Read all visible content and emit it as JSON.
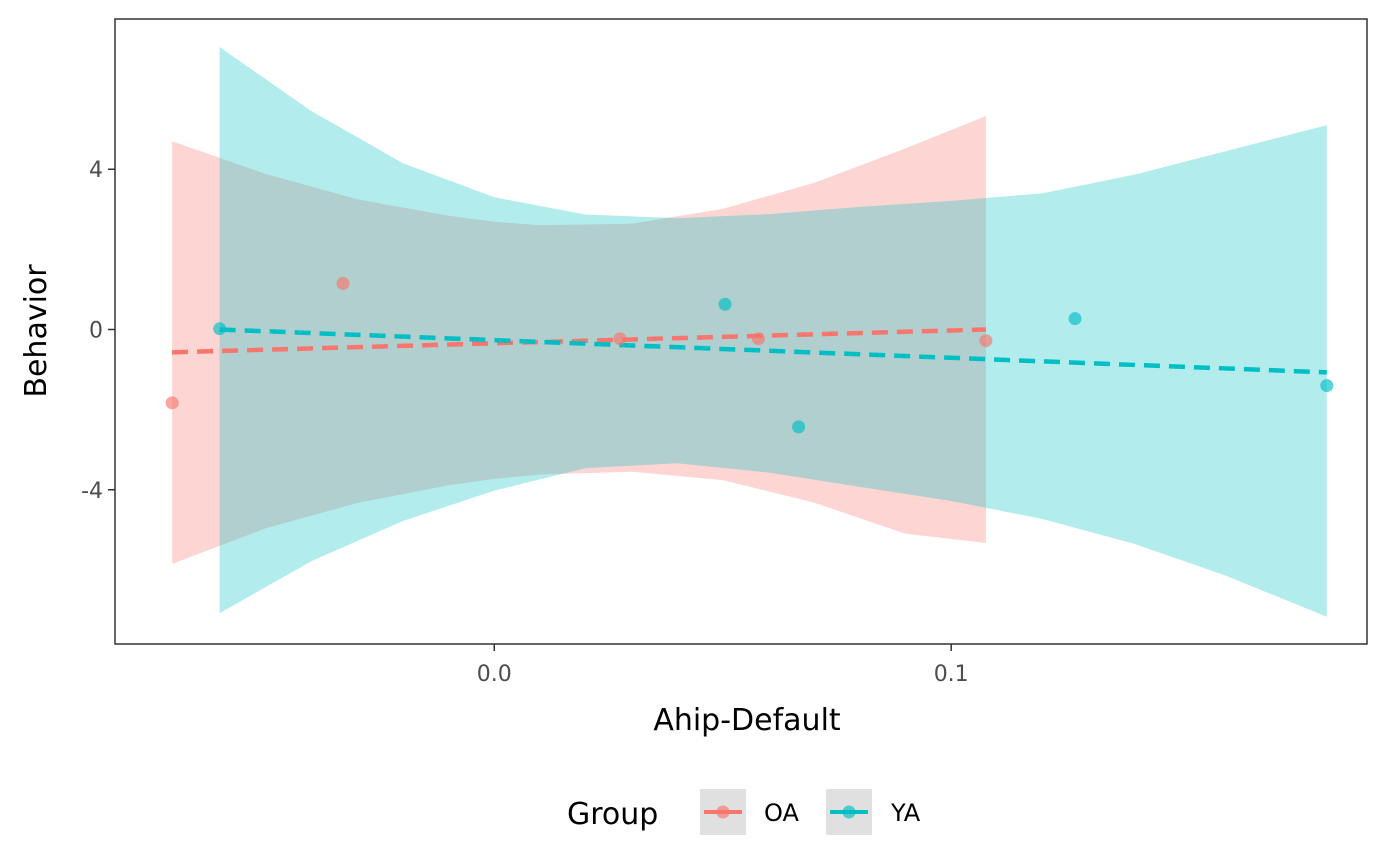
{
  "chart_data": {
    "type": "scatter",
    "title": "",
    "xlabel": "Ahip-Default",
    "ylabel": "Behavior",
    "xlim": [
      -0.083,
      0.191
    ],
    "ylim": [
      -7.85,
      7.75
    ],
    "x_ticks": [
      0.0,
      0.1
    ],
    "x_tick_labels": [
      "0.0",
      "0.1"
    ],
    "y_ticks": [
      -4,
      0,
      4
    ],
    "y_tick_labels": [
      "-4",
      "0",
      "4"
    ],
    "grid": false,
    "legend": {
      "title": "Group",
      "position": "bottom",
      "entries": [
        "OA",
        "YA"
      ]
    },
    "series": [
      {
        "name": "OA",
        "color": "#F8766D",
        "points": [
          {
            "x": -0.0705,
            "y": -1.83
          },
          {
            "x": -0.0331,
            "y": 1.15
          },
          {
            "x": 0.0275,
            "y": -0.23
          },
          {
            "x": 0.0578,
            "y": -0.23
          },
          {
            "x": 0.1076,
            "y": -0.28
          }
        ],
        "fit": {
          "x": [
            -0.0705,
            0.1076
          ],
          "y": [
            -0.57,
            0.0
          ]
        },
        "band": {
          "x": [
            -0.0705,
            -0.05,
            -0.03,
            -0.01,
            0.0,
            0.01,
            0.03,
            0.05,
            0.07,
            0.09,
            0.1076
          ],
          "upper": [
            4.7,
            3.88,
            3.25,
            2.84,
            2.69,
            2.6,
            2.64,
            3.01,
            3.66,
            4.52,
            5.33
          ],
          "lower": [
            -5.85,
            -4.96,
            -4.33,
            -3.89,
            -3.73,
            -3.62,
            -3.55,
            -3.76,
            -4.32,
            -5.1,
            -5.33
          ]
        }
      },
      {
        "name": "YA",
        "color": "#00BFC4",
        "points": [
          {
            "x": -0.0601,
            "y": 0.02
          },
          {
            "x": 0.0505,
            "y": 0.63
          },
          {
            "x": 0.0666,
            "y": -2.43
          },
          {
            "x": 0.1271,
            "y": 0.27
          },
          {
            "x": 0.1822,
            "y": -1.4
          }
        ],
        "fit": {
          "x": [
            -0.0601,
            0.1822
          ],
          "y": [
            0.0,
            -1.07
          ]
        },
        "band": {
          "x": [
            -0.0601,
            -0.04,
            -0.02,
            0.0,
            0.02,
            0.04,
            0.06,
            0.08,
            0.1,
            0.12,
            0.14,
            0.16,
            0.1822
          ],
          "upper": [
            7.05,
            5.45,
            4.15,
            3.3,
            2.87,
            2.78,
            2.88,
            3.06,
            3.21,
            3.4,
            3.86,
            4.45,
            5.1
          ],
          "lower": [
            -7.08,
            -5.78,
            -4.78,
            -4.02,
            -3.46,
            -3.34,
            -3.57,
            -3.93,
            -4.28,
            -4.73,
            -5.35,
            -6.14,
            -7.17
          ]
        }
      }
    ]
  }
}
